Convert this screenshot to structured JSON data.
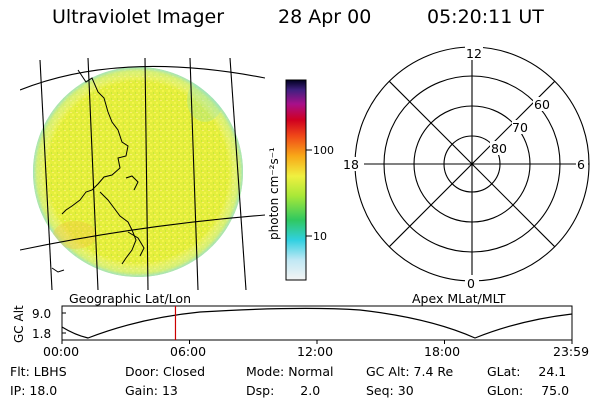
{
  "header": {
    "title": "Ultraviolet Imager",
    "date": "28 Apr 00",
    "time": "05:20:11 UT"
  },
  "image_panel": {
    "caption": "Geographic Lat/Lon"
  },
  "colorbar": {
    "unit_label": "photon cm⁻²s⁻¹",
    "ticks": [
      "100",
      "10"
    ]
  },
  "polar_panel": {
    "caption": "Apex MLat/MLT",
    "mlt_labels": {
      "top": "12",
      "left": "18",
      "right": "6",
      "bottom": "0"
    },
    "lat_labels": [
      "60",
      "70",
      "80"
    ]
  },
  "altitude_strip": {
    "axis_label": "GC Alt",
    "y_ticks": [
      "9.0",
      "1.8"
    ],
    "x_ticks": [
      "00:00",
      "06:00",
      "12:00",
      "18:00",
      "23:59"
    ],
    "cursor_time_hours": 5.34
  },
  "info": {
    "row1": [
      {
        "key": "Flt:",
        "value": "LBHS"
      },
      {
        "key": "Door:",
        "value": "Closed"
      },
      {
        "key": "Mode:",
        "value": "Normal"
      },
      {
        "key": "GC Alt:",
        "value": "7.4 Re"
      },
      {
        "key": "GLat:",
        "value": "24.1"
      }
    ],
    "row2": [
      {
        "key": "IP:",
        "value": "18.0"
      },
      {
        "key": "Gain:",
        "value": "13"
      },
      {
        "key": "Dsp:",
        "value": "2.0"
      },
      {
        "key": "Seq:",
        "value": "30"
      },
      {
        "key": "GLon:",
        "value": "75.0"
      }
    ]
  },
  "colors": {
    "cursor": "#cc0000",
    "disk_base": "#e6ef3a"
  }
}
